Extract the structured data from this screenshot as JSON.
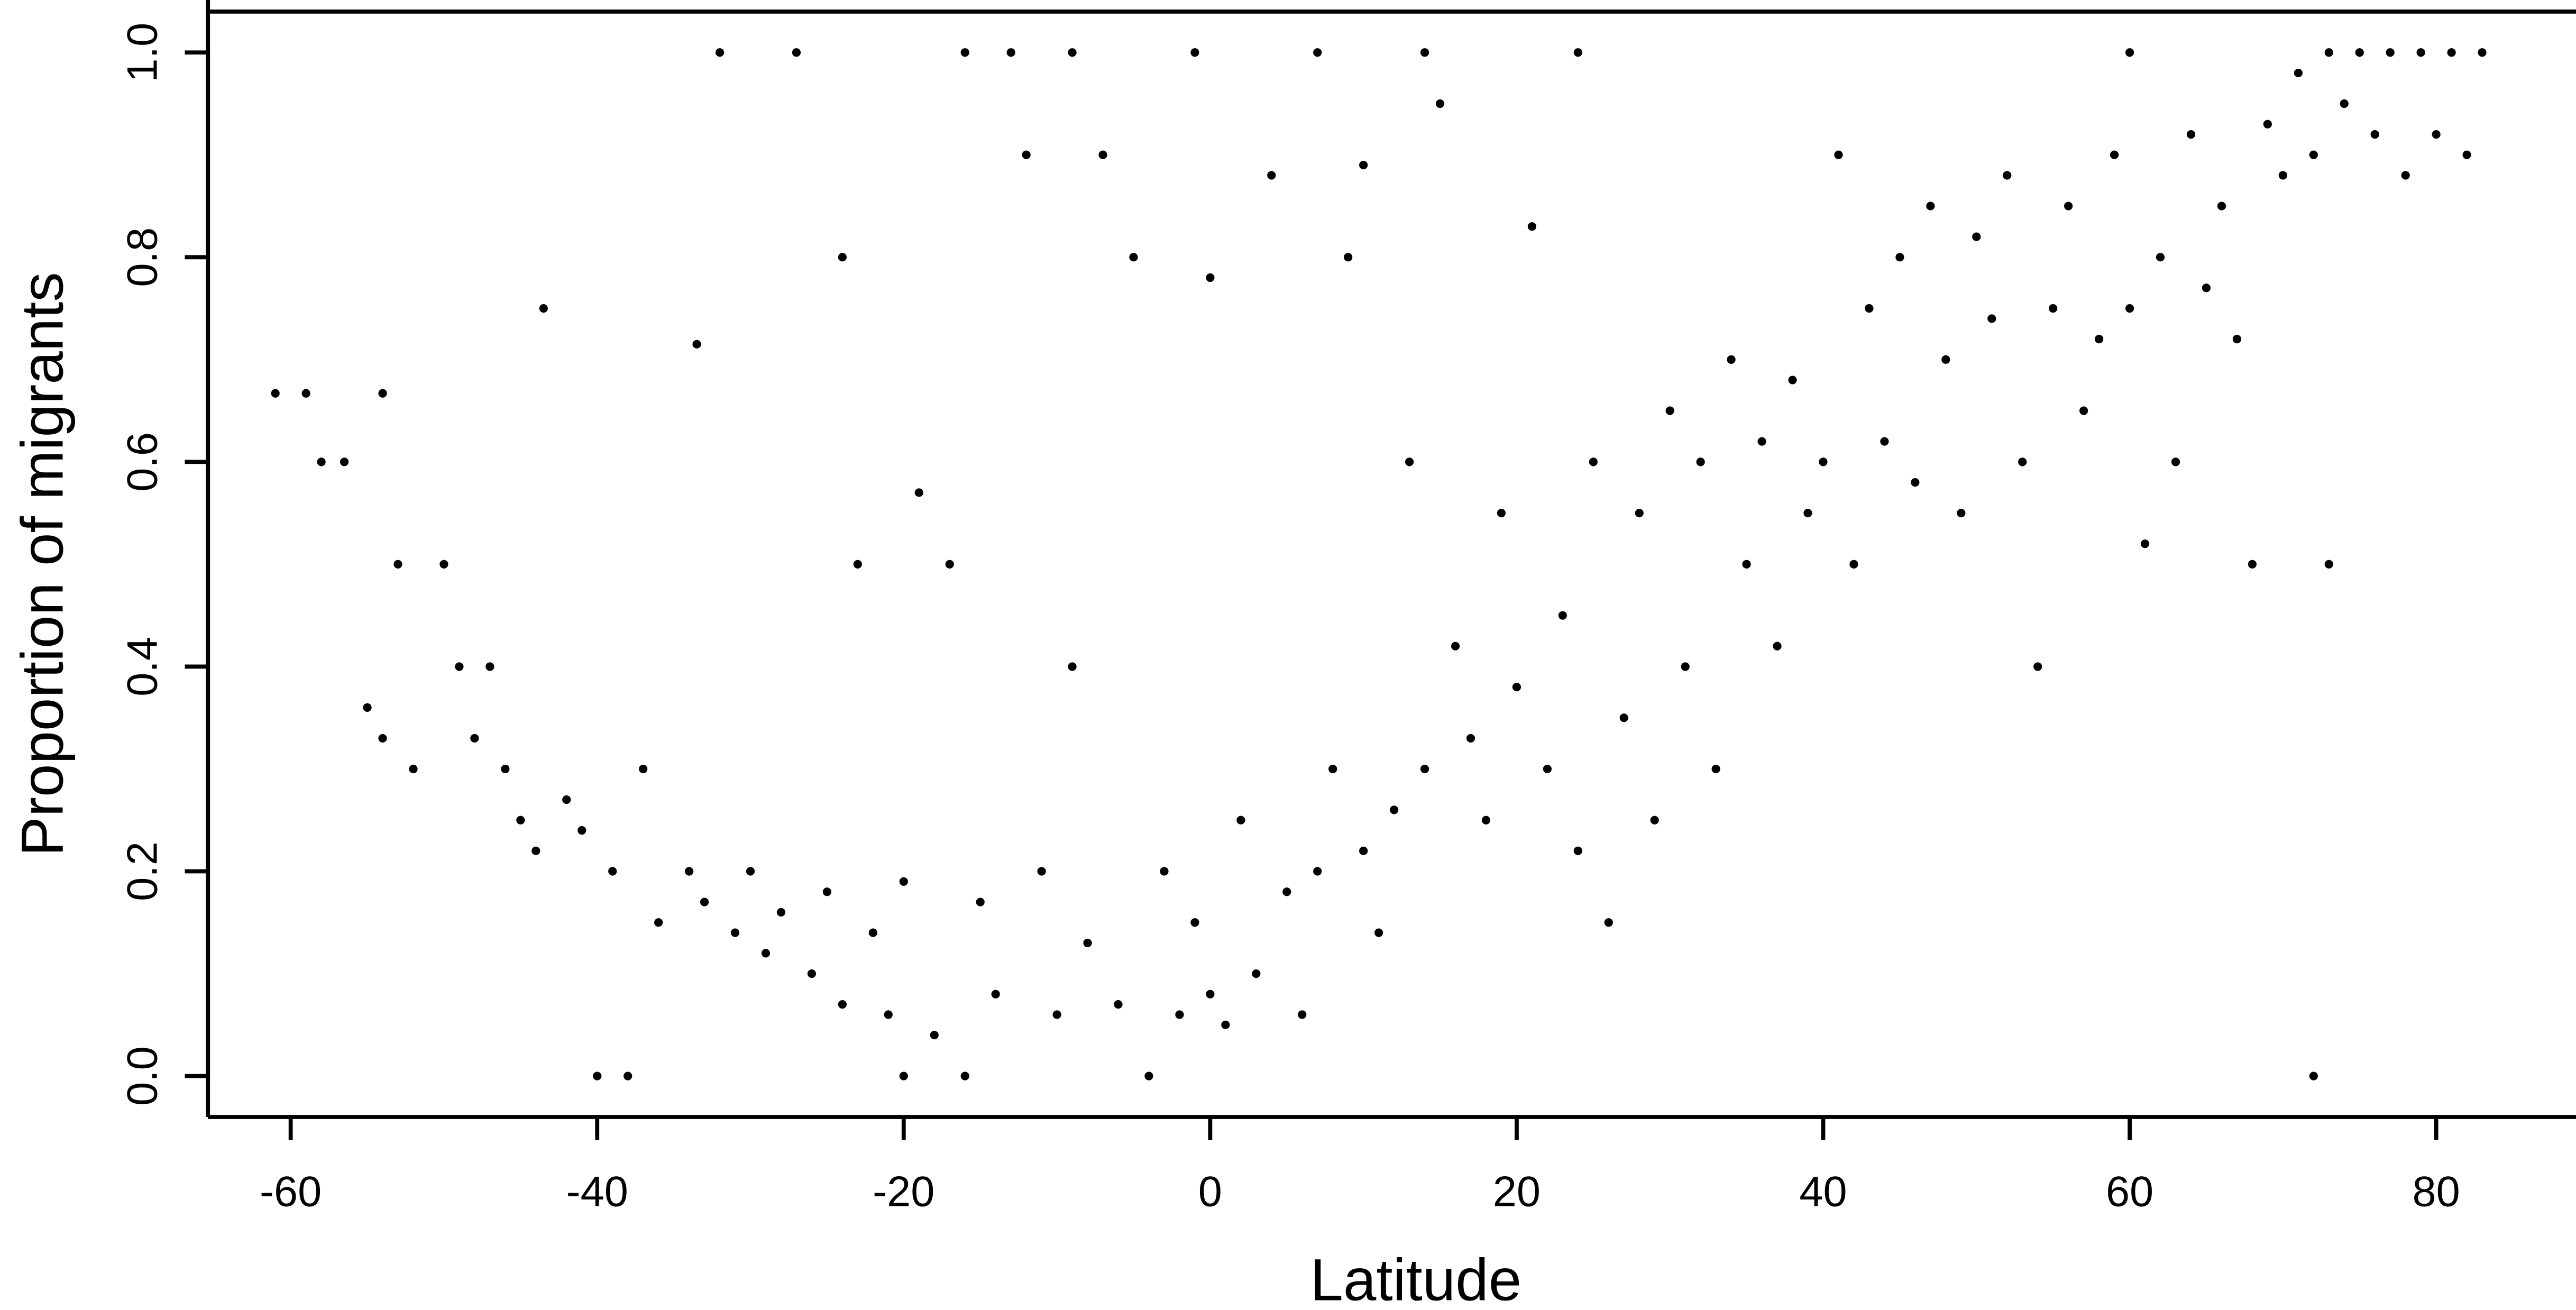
{
  "chart_data": {
    "type": "scatter",
    "color": "#000000",
    "xlabel": "Latitude",
    "ylabel": "Proportion of migrants",
    "xlim": [
      -65.4,
      88.8
    ],
    "ylim": [
      -0.04,
      1.04
    ],
    "xticks": [
      -60,
      -40,
      -20,
      0,
      20,
      40,
      60,
      80
    ],
    "yticks": [
      {
        "value": 0,
        "label": "0.0"
      },
      0.2,
      0.4,
      0.6,
      0.8,
      {
        "value": 1,
        "label": "1.0"
      }
    ],
    "x": [
      -61,
      -59,
      -58,
      -56.5,
      -54,
      -53,
      -55,
      -54,
      -52,
      -50,
      -49,
      -47,
      -48,
      -46,
      -45,
      -44,
      -43.5,
      -42,
      -41,
      -40,
      -38,
      -39,
      -37,
      -36,
      -34,
      -33.5,
      -33,
      -32,
      -31,
      -30,
      -29,
      -28,
      -27,
      -26,
      -25,
      -24,
      -24,
      -23,
      -22,
      -21,
      -20,
      -20,
      -19,
      -18,
      -17,
      -16,
      -16,
      -15,
      -14,
      -13,
      -12,
      -11,
      -10,
      -9,
      -9,
      -8,
      -7,
      -6,
      -5,
      -4,
      -3,
      -2,
      -1,
      -1,
      0,
      0,
      1,
      2,
      3,
      4,
      5,
      6,
      7,
      7,
      8,
      9,
      10,
      10,
      11,
      12,
      13,
      14,
      14,
      15,
      16,
      17,
      18,
      19,
      20,
      21,
      22,
      23,
      24,
      24,
      25,
      26,
      27,
      28,
      29,
      30,
      31,
      32,
      33,
      34,
      35,
      36,
      37,
      38,
      39,
      40,
      41,
      42,
      43,
      44,
      45,
      46,
      47,
      48,
      49,
      50,
      51,
      52,
      53,
      54,
      55,
      56,
      57,
      58,
      59,
      60,
      60,
      61,
      62,
      63,
      64,
      65,
      66,
      67,
      68,
      69,
      70,
      71,
      72,
      72,
      73,
      73,
      74,
      75,
      76,
      77,
      78,
      79,
      80,
      81,
      82,
      83
    ],
    "values": [
      0.667,
      0.667,
      0.6,
      0.6,
      0.667,
      0.5,
      0.36,
      0.33,
      0.3,
      0.5,
      0.4,
      0.4,
      0.33,
      0.3,
      0.25,
      0.22,
      0.75,
      0.27,
      0.24,
      0,
      0,
      0.2,
      0.3,
      0.15,
      0.2,
      0.715,
      0.17,
      1,
      0.14,
      0.2,
      0.12,
      0.16,
      1,
      0.1,
      0.18,
      0.8,
      0.07,
      0.5,
      0.14,
      0.06,
      0,
      0.19,
      0.57,
      0.04,
      0.5,
      1,
      0,
      0.17,
      0.08,
      1,
      0.9,
      0.2,
      0.06,
      1,
      0.4,
      0.13,
      0.9,
      0.07,
      0.8,
      0,
      0.2,
      0.06,
      1,
      0.15,
      0.08,
      0.78,
      0.05,
      0.25,
      0.1,
      0.88,
      0.18,
      0.06,
      1,
      0.2,
      0.3,
      0.8,
      0.89,
      0.22,
      0.14,
      0.26,
      0.6,
      1,
      0.3,
      0.95,
      0.42,
      0.33,
      0.25,
      0.55,
      0.38,
      0.83,
      0.3,
      0.45,
      1,
      0.22,
      0.6,
      0.15,
      0.35,
      0.55,
      0.25,
      0.65,
      0.4,
      0.6,
      0.3,
      0.7,
      0.5,
      0.62,
      0.42,
      0.68,
      0.55,
      0.6,
      0.9,
      0.5,
      0.75,
      0.62,
      0.8,
      0.58,
      0.85,
      0.7,
      0.55,
      0.82,
      0.74,
      0.88,
      0.6,
      0.4,
      0.75,
      0.85,
      0.65,
      0.72,
      0.9,
      1,
      0.75,
      0.52,
      0.8,
      0.6,
      0.92,
      0.77,
      0.85,
      0.72,
      0.5,
      0.93,
      0.88,
      0.98,
      0,
      0.9,
      1,
      0.5,
      0.95,
      1,
      0.92,
      1,
      0.88,
      1,
      0.92,
      1,
      0.9,
      1
    ]
  }
}
